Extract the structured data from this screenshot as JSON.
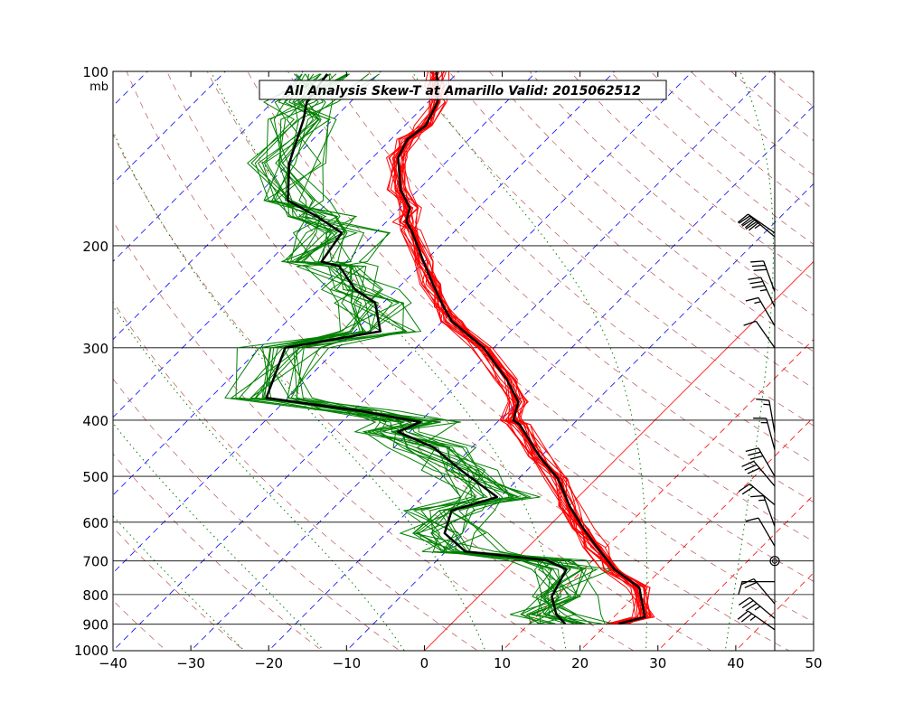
{
  "chart_data": {
    "type": "line",
    "subtype": "skew-t log-p",
    "title": "All Analysis  Skew-T at Amarillo   Valid: 2015062512",
    "xlabel": "",
    "ylabel": "mb",
    "xlim": [
      -40,
      50
    ],
    "ylim": [
      1000,
      100
    ],
    "x_ticks": [
      "−40",
      "−30",
      "−20",
      "−10",
      "0",
      "10",
      "20",
      "30",
      "40",
      "50"
    ],
    "x_tick_values": [
      -40,
      -30,
      -20,
      -10,
      0,
      10,
      20,
      30,
      40,
      50
    ],
    "y_ticks": [
      "100",
      "200",
      "300",
      "400",
      "500",
      "600",
      "700",
      "800",
      "900",
      "1000"
    ],
    "y_tick_values": [
      100,
      200,
      300,
      400,
      500,
      600,
      700,
      800,
      900,
      1000
    ],
    "y_unit_label": "mb",
    "colors": {
      "temperature": "#ff0000",
      "dewpoint": "#008000",
      "analysis": "#000000",
      "isotherm_cold": "#0000ff",
      "isotherm_warm": "#ff0000",
      "dry_adiabat": "#a52a2a",
      "moist_adiabat": "#008000"
    },
    "series": [
      {
        "name": "Analysis temperature",
        "color": "#000000",
        "p": [
          898,
          875,
          778,
          724,
          662,
          615,
          563,
          505,
          462,
          407,
          400,
          372,
          340,
          300,
          270,
          255,
          233,
          213,
          188,
          182,
          172,
          160,
          141,
          131,
          124,
          113,
          106,
          100
        ],
        "t": [
          21.5,
          24.0,
          19.5,
          14.0,
          8.8,
          4.7,
          0.1,
          -4.9,
          -10.2,
          -16.8,
          -18.2,
          -19.9,
          -24.3,
          -31.3,
          -38.8,
          -41.7,
          -46.0,
          -50.1,
          -55.7,
          -57.4,
          -58.8,
          -62.3,
          -66.7,
          -67.9,
          -67.3,
          -68.8,
          -70.8,
          -72.9
        ]
      },
      {
        "name": "Analysis dewpoint",
        "color": "#000000",
        "p": [
          898,
          866,
          806,
          724,
          698,
          674,
          627,
          573,
          543,
          488,
          446,
          419,
          403,
          386,
          366,
          300,
          281,
          251,
          238,
          217,
          213,
          190,
          178,
          167,
          144,
          121,
          113,
          101
        ],
        "t": [
          14.6,
          12.3,
          9.4,
          7.8,
          4.1,
          -7.5,
          -12.5,
          -14.5,
          -10.4,
          -18.5,
          -24.9,
          -31.5,
          -29.9,
          -38.8,
          -52.8,
          -56.8,
          -46.7,
          -51.0,
          -55.3,
          -60.3,
          -63.2,
          -64.3,
          -69.6,
          -75.4,
          -80.0,
          -83.8,
          -85.6,
          -86.6
        ]
      }
    ],
    "ensemble": {
      "members": 21,
      "temperature_spread_c": 1.5,
      "dewpoint_spread_c": 5
    },
    "wind_barbs": [
      {
        "p": 190,
        "dir": 305,
        "kt": 40
      },
      {
        "p": 193,
        "dir": 310,
        "kt": 35
      },
      {
        "p": 240,
        "dir": 340,
        "kt": 30
      },
      {
        "p": 255,
        "dir": 335,
        "kt": 35
      },
      {
        "p": 275,
        "dir": 330,
        "kt": 15
      },
      {
        "p": 300,
        "dir": 325,
        "kt": 10
      },
      {
        "p": 420,
        "dir": 350,
        "kt": 15
      },
      {
        "p": 450,
        "dir": 345,
        "kt": 15
      },
      {
        "p": 500,
        "dir": 330,
        "kt": 30
      },
      {
        "p": 520,
        "dir": 320,
        "kt": 30
      },
      {
        "p": 560,
        "dir": 310,
        "kt": 20
      },
      {
        "p": 610,
        "dir": 340,
        "kt": 15
      },
      {
        "p": 660,
        "dir": 330,
        "kt": 10
      },
      {
        "p": 700,
        "dir": 0,
        "kt": 0
      },
      {
        "p": 760,
        "dir": 270,
        "kt": 10
      },
      {
        "p": 830,
        "dir": 320,
        "kt": 20
      },
      {
        "p": 880,
        "dir": 310,
        "kt": 35
      },
      {
        "p": 920,
        "dir": 305,
        "kt": 25
      }
    ]
  }
}
